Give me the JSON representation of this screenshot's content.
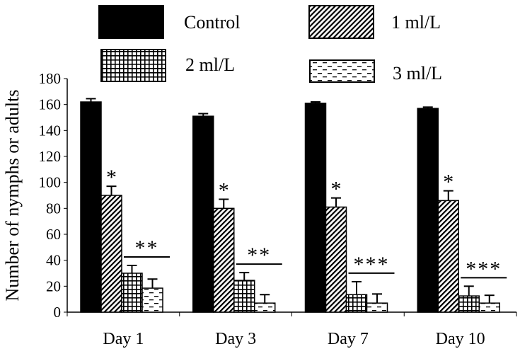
{
  "chart_data": {
    "type": "bar",
    "title": "",
    "xlabel": "",
    "ylabel": "Number of nymphs or adults",
    "ylim": [
      0,
      180
    ],
    "yticks": [
      0,
      20,
      40,
      60,
      80,
      100,
      120,
      140,
      160,
      180
    ],
    "categories": [
      "Day 1",
      "Day 3",
      "Day 7",
      "Day 10"
    ],
    "legend_position": "top",
    "grid": false,
    "series": [
      {
        "name": "Control",
        "pattern": "solid-black",
        "values": [
          162,
          151,
          161,
          157
        ],
        "errors": [
          2.5,
          2,
          1,
          1
        ]
      },
      {
        "name": "1 ml/L",
        "pattern": "diagonal-hatch",
        "values": [
          90,
          80,
          81,
          86
        ],
        "errors": [
          7,
          7,
          7,
          7.5
        ]
      },
      {
        "name": "2 ml/L",
        "pattern": "grid-hatch",
        "values": [
          30,
          24.5,
          13.5,
          12.5
        ],
        "errors": [
          6,
          6,
          10,
          7.5
        ]
      },
      {
        "name": "3 ml/L",
        "pattern": "dashed-lines",
        "values": [
          18.5,
          7,
          7,
          7
        ],
        "errors": [
          7,
          6.5,
          7,
          6
        ]
      }
    ],
    "annotations": {
      "one_ml": [
        "*",
        "*",
        "*",
        "*"
      ],
      "two_three_ml": [
        "**",
        "**",
        "***",
        "***"
      ]
    },
    "colors": {
      "bar_outline": "#000000",
      "background": "#ffffff"
    }
  }
}
